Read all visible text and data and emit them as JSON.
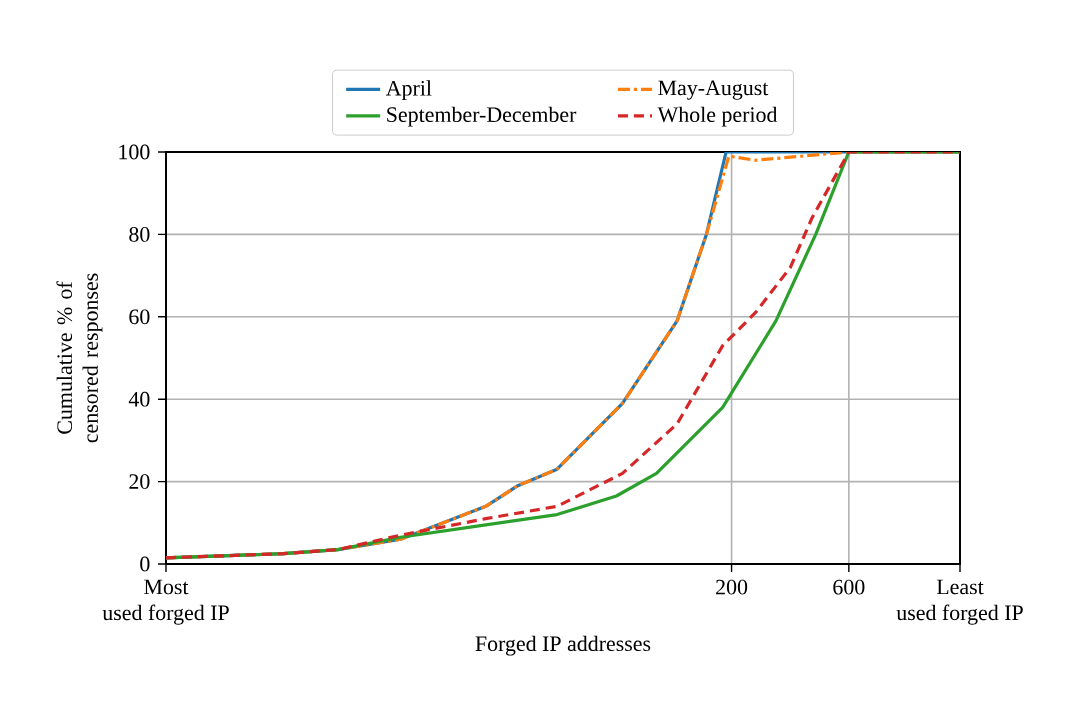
{
  "chart_data": {
    "type": "line",
    "xlabel": "Forged IP addresses",
    "ylabel": "Cumulative % of censored responses",
    "log": "x",
    "grid": true,
    "legend": "top",
    "marker": "none",
    "xlim": [
      1,
      1700
    ],
    "xticks": [
      {
        "value": 1,
        "label": "Most used forged IP"
      },
      200,
      600,
      {
        "value": 1700,
        "label": "Least used forged IP"
      }
    ],
    "ylim": [
      0,
      100
    ],
    "yticks": [
      0,
      20,
      40,
      60,
      80,
      100
    ],
    "series": [
      {
        "name": "April",
        "color": "#1f77b4",
        "line_style": "solid",
        "x": [
          1,
          3,
          5,
          9,
          20,
          27,
          39,
          72,
          120,
          158,
          190,
          1700
        ],
        "values": [
          1.5,
          2.5,
          3.5,
          6,
          14,
          19,
          23,
          39,
          59,
          80,
          100,
          100
        ]
      },
      {
        "name": "May-August",
        "color": "#ff7f0e",
        "line_style": "dashdot",
        "x": [
          1,
          3,
          5,
          9,
          20,
          27,
          39,
          72,
          120,
          158,
          195,
          250,
          600,
          1700
        ],
        "values": [
          1.5,
          2.5,
          3.5,
          6,
          14,
          19,
          23,
          39,
          59,
          80,
          99,
          98,
          100,
          100
        ]
      },
      {
        "name": "September-December",
        "color": "#2ca02c",
        "line_style": "solid",
        "x": [
          1,
          3,
          5,
          9,
          20,
          39,
          68,
          99,
          184,
          303,
          440,
          600,
          1700
        ],
        "values": [
          1.5,
          2.5,
          3.5,
          6.5,
          9.5,
          12,
          16.5,
          22,
          38,
          59,
          80,
          100,
          100
        ]
      },
      {
        "name": "Whole period",
        "color": "#d62728",
        "line_style": "dashed",
        "x": [
          1,
          3,
          5,
          9,
          20,
          39,
          72,
          120,
          184,
          250,
          347,
          425,
          600,
          1700
        ],
        "values": [
          1.5,
          2.5,
          3.5,
          7,
          11,
          14,
          22,
          34,
          53,
          61,
          72,
          84,
          100,
          100
        ]
      }
    ]
  }
}
